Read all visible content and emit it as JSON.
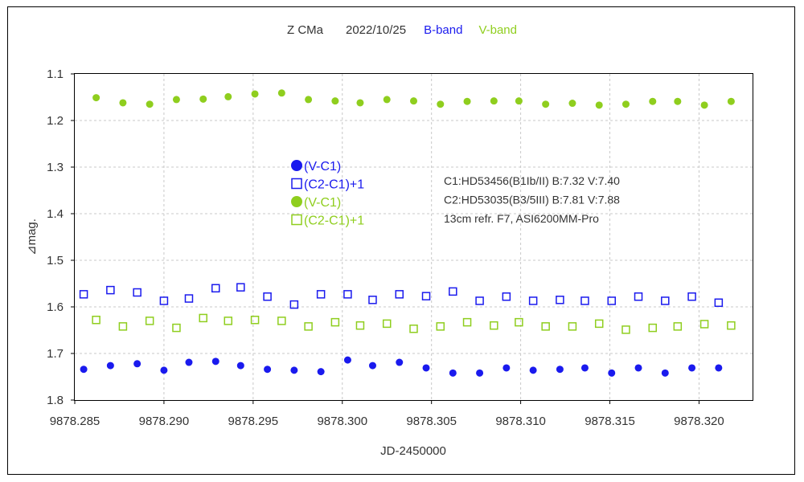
{
  "chart_data": {
    "type": "scatter",
    "title": {
      "object": "Z CMa",
      "date": "2022/10/25",
      "band_b": "B-band",
      "band_v": "V-band"
    },
    "xlabel": "JD-2450000",
    "ylabel": "⊿mag.",
    "xlim": [
      9878.285,
      9878.323
    ],
    "ylim": [
      1.1,
      1.8
    ],
    "y_inverted": true,
    "grid": true,
    "x_ticks": [
      "9878.285",
      "9878.290",
      "9878.295",
      "9878.300",
      "9878.305",
      "9878.310",
      "9878.315",
      "9878.320"
    ],
    "x_tick_values": [
      9878.285,
      9878.29,
      9878.295,
      9878.3,
      9878.305,
      9878.31,
      9878.315,
      9878.32
    ],
    "y_ticks": [
      "1.1",
      "1.2",
      "1.3",
      "1.4",
      "1.5",
      "1.6",
      "1.7",
      "1.8"
    ],
    "y_tick_values": [
      1.1,
      1.2,
      1.3,
      1.4,
      1.5,
      1.6,
      1.7,
      1.8
    ],
    "colors": {
      "blue": "#1a1aee",
      "green": "#8fce1e",
      "grid": "#c8c8c8"
    },
    "legend": {
      "placement": "center-left",
      "entries": [
        {
          "label": "(V-C1)",
          "marker": "filled-circle",
          "color": "#1a1aee"
        },
        {
          "label": "(C2-C1)+1",
          "marker": "open-square",
          "color": "#1a1aee"
        },
        {
          "label": "(V-C1)",
          "marker": "filled-circle",
          "color": "#8fce1e"
        },
        {
          "label": "(C2-C1)+1",
          "marker": "open-square",
          "color": "#8fce1e"
        }
      ]
    },
    "annotations": [
      "C1:HD53456(B1Ib/II)  B:7.32  V:7.40",
      "C2:HD53035(B3/5III)  B:7.81  V:7.88",
      "13cm refr. F7,  ASI6200MM-Pro"
    ],
    "series": [
      {
        "band": "B",
        "kind": "V-C1",
        "marker": "filled-circle",
        "color": "#1a1aee",
        "x": [
          9878.2855,
          9878.287,
          9878.2885,
          9878.29,
          9878.2914,
          9878.2929,
          9878.2943,
          9878.2958,
          9878.2973,
          9878.2988,
          9878.3003,
          9878.3017,
          9878.3032,
          9878.3047,
          9878.3062,
          9878.3077,
          9878.3092,
          9878.3107,
          9878.3122,
          9878.3136,
          9878.3151,
          9878.3166,
          9878.3181,
          9878.3196,
          9878.3211
        ],
        "y": [
          1.734,
          1.726,
          1.722,
          1.736,
          1.719,
          1.717,
          1.726,
          1.734,
          1.736,
          1.739,
          1.714,
          1.726,
          1.719,
          1.731,
          1.742,
          1.742,
          1.731,
          1.736,
          1.734,
          1.731,
          1.742,
          1.731,
          1.742,
          1.731,
          1.731
        ]
      },
      {
        "band": "B",
        "kind": "(C2-C1)+1",
        "marker": "open-square",
        "color": "#1a1aee",
        "x": [
          9878.2855,
          9878.287,
          9878.2885,
          9878.29,
          9878.2914,
          9878.2929,
          9878.2943,
          9878.2958,
          9878.2973,
          9878.2988,
          9878.3003,
          9878.3017,
          9878.3032,
          9878.3047,
          9878.3062,
          9878.3077,
          9878.3092,
          9878.3107,
          9878.3122,
          9878.3136,
          9878.3151,
          9878.3166,
          9878.3181,
          9878.3196,
          9878.3211
        ],
        "y": [
          1.573,
          1.564,
          1.569,
          1.587,
          1.582,
          1.56,
          1.558,
          1.578,
          1.595,
          1.573,
          1.573,
          1.585,
          1.573,
          1.577,
          1.567,
          1.587,
          1.578,
          1.587,
          1.585,
          1.587,
          1.587,
          1.578,
          1.587,
          1.578,
          1.591
        ]
      },
      {
        "band": "V",
        "kind": "V-C1",
        "marker": "filled-circle",
        "color": "#8fce1e",
        "x": [
          9878.2862,
          9878.2877,
          9878.2892,
          9878.2907,
          9878.2922,
          9878.2936,
          9878.2951,
          9878.2966,
          9878.2981,
          9878.2996,
          9878.301,
          9878.3025,
          9878.304,
          9878.3055,
          9878.307,
          9878.3085,
          9878.3099,
          9878.3114,
          9878.3129,
          9878.3144,
          9878.3159,
          9878.3174,
          9878.3188,
          9878.3203,
          9878.3218
        ],
        "y": [
          1.151,
          1.162,
          1.165,
          1.155,
          1.154,
          1.149,
          1.143,
          1.141,
          1.155,
          1.158,
          1.162,
          1.155,
          1.158,
          1.165,
          1.159,
          1.158,
          1.158,
          1.165,
          1.163,
          1.167,
          1.165,
          1.159,
          1.159,
          1.167,
          1.159
        ]
      },
      {
        "band": "V",
        "kind": "(C2-C1)+1",
        "marker": "open-square",
        "color": "#8fce1e",
        "x": [
          9878.2862,
          9878.2877,
          9878.2892,
          9878.2907,
          9878.2922,
          9878.2936,
          9878.2951,
          9878.2966,
          9878.2981,
          9878.2996,
          9878.301,
          9878.3025,
          9878.304,
          9878.3055,
          9878.307,
          9878.3085,
          9878.3099,
          9878.3114,
          9878.3129,
          9878.3144,
          9878.3159,
          9878.3174,
          9878.3188,
          9878.3203,
          9878.3218
        ],
        "y": [
          1.628,
          1.642,
          1.63,
          1.645,
          1.624,
          1.63,
          1.628,
          1.63,
          1.642,
          1.633,
          1.64,
          1.636,
          1.647,
          1.642,
          1.633,
          1.64,
          1.633,
          1.642,
          1.642,
          1.636,
          1.649,
          1.645,
          1.642,
          1.637,
          1.64
        ]
      }
    ]
  }
}
